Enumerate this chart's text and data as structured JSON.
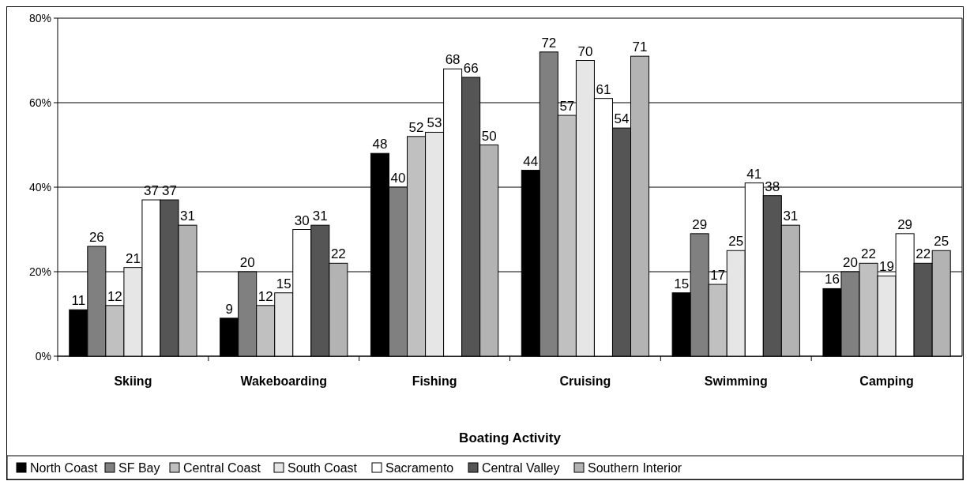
{
  "chart_data": {
    "type": "bar",
    "xlabel": "Boating Activity",
    "categories": [
      "Skiing",
      "Wakeboarding",
      "Fishing",
      "Cruising",
      "Swimming",
      "Camping"
    ],
    "series": [
      {
        "name": "North Coast",
        "color": "#000000",
        "values": [
          11,
          9,
          48,
          44,
          15,
          16
        ]
      },
      {
        "name": "SF Bay",
        "color": "#808080",
        "values": [
          26,
          20,
          40,
          72,
          29,
          20
        ]
      },
      {
        "name": "Central Coast",
        "color": "#c0c0c0",
        "values": [
          12,
          12,
          52,
          57,
          17,
          22
        ]
      },
      {
        "name": "South Coast",
        "color": "#e6e6e6",
        "values": [
          21,
          15,
          53,
          70,
          25,
          19
        ]
      },
      {
        "name": "Sacramento",
        "color": "#ffffff",
        "values": [
          37,
          30,
          68,
          61,
          41,
          29
        ]
      },
      {
        "name": "Central Valley",
        "color": "#555555",
        "values": [
          37,
          31,
          66,
          54,
          38,
          22
        ]
      },
      {
        "name": "Southern Interior",
        "color": "#b3b3b3",
        "values": [
          31,
          22,
          50,
          71,
          31,
          25
        ]
      }
    ],
    "ylim": [
      0,
      80
    ],
    "yticks": [
      {
        "value": 0,
        "label": "0%"
      },
      {
        "value": 20,
        "label": "20%"
      },
      {
        "value": 40,
        "label": "40%"
      },
      {
        "value": 60,
        "label": "60%"
      },
      {
        "value": 80,
        "label": "80%"
      }
    ],
    "grid": "y",
    "legend": "bottom",
    "data_labels": true
  }
}
